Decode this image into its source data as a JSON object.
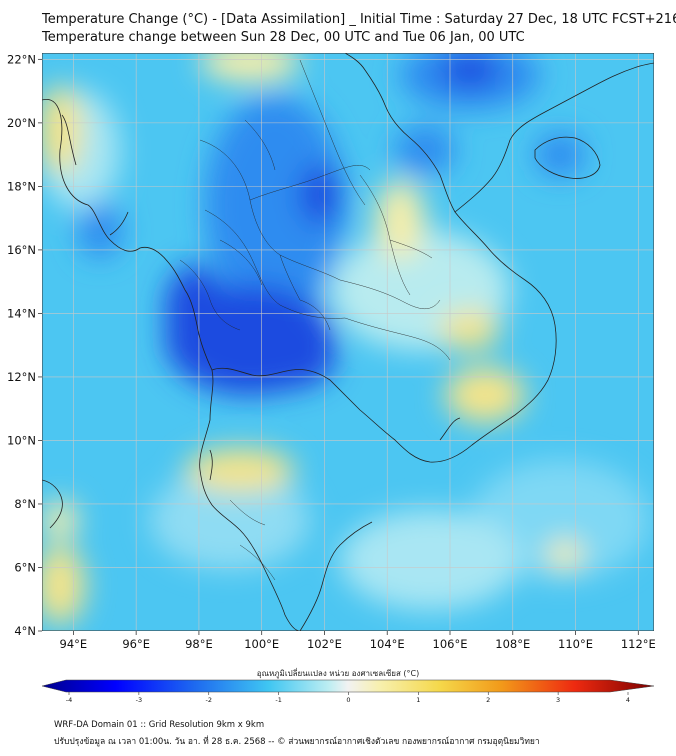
{
  "header": {
    "title_line1": "Temperature Change (°C) - [Data Assimilation] _ Initial Time : Saturday 27 Dec, 18 UTC FCST+216",
    "title_line2": "Temperature change between Sun 28 Dec, 00 UTC and Tue 06 Jan, 00 UTC"
  },
  "map": {
    "lat_labels": [
      "22°N",
      "20°N",
      "18°N",
      "16°N",
      "14°N",
      "12°N",
      "10°N",
      "8°N",
      "6°N",
      "4°N"
    ],
    "lon_labels": [
      "94°E",
      "96°E",
      "98°E",
      "100°E",
      "102°E",
      "104°E",
      "106°E",
      "108°E",
      "110°E",
      "112°E"
    ],
    "lat_values": [
      22,
      20,
      18,
      16,
      14,
      12,
      10,
      8,
      6,
      4
    ],
    "lon_values": [
      94,
      96,
      98,
      100,
      102,
      104,
      106,
      108,
      110,
      112
    ],
    "extent": {
      "lon_min": 93.0,
      "lon_max": 112.5,
      "lat_min": 4.0,
      "lat_max": 22.2
    },
    "grid": true,
    "field_colors": {
      "strong_cooling": "#1a4be0",
      "moderate_cooling": "#2d8cf0",
      "light_cooling": "#4cc6f2",
      "slight_cooling": "#7fd8f4",
      "near_zero": "#d2efef",
      "slight_warming": "#f6eeaa",
      "warming": "#f4e48a"
    }
  },
  "colorbar": {
    "title": "อุณหภูมิเปลี่ยนแปลง หน่วย องศาเซลเซียส (°C)",
    "ticks": [
      "-4",
      "-3",
      "-2",
      "-1",
      "0",
      "1",
      "2",
      "3",
      "4"
    ],
    "range": [
      -4,
      4
    ]
  },
  "footer": {
    "line1": "WRF-DA Domain 01 :: Grid Resolution 9km x 9km",
    "line2": "ปรับปรุงข้อมูล ณ เวลา 01:00น. วัน อา. ที่ 28 ธ.ค. 2568 -- © ส่วนพยากรณ์อากาศเชิงตัวเลข กองพยากรณ์อากาศ กรมอุตุนิยมวิทยา"
  }
}
